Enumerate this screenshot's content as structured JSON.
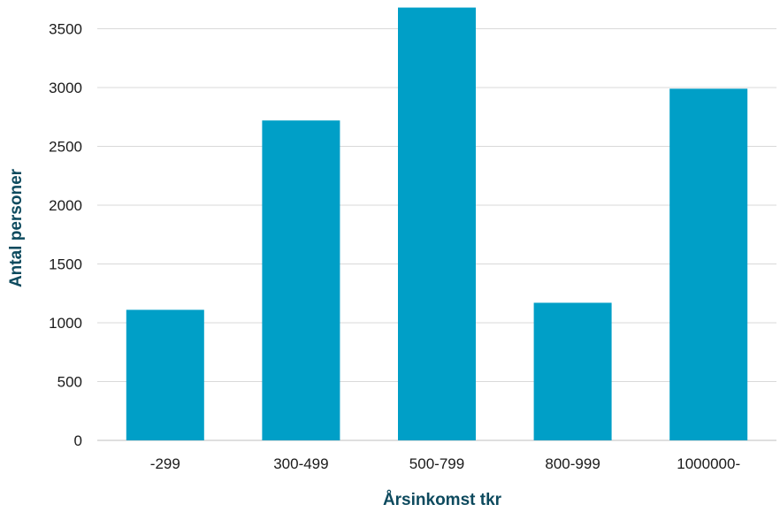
{
  "chart_data": {
    "type": "bar",
    "categories": [
      "-299",
      "300-499",
      "500-799",
      "800-999",
      "1000000-"
    ],
    "values": [
      1110,
      2720,
      3680,
      1170,
      2990
    ],
    "xlabel": "Årsinkomst tkr",
    "ylabel": "Antal personer",
    "ylim": [
      0,
      3500
    ],
    "yticks": [
      0,
      500,
      1000,
      1500,
      2000,
      2500,
      3000,
      3500
    ],
    "grid": true,
    "bar_color": "#009fc7"
  }
}
